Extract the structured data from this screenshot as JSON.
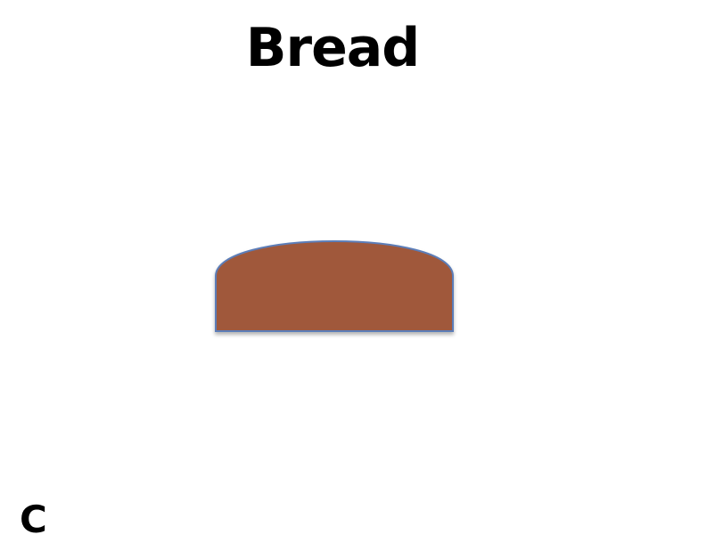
{
  "slide": {
    "title": "Bread",
    "corner_label": "C"
  },
  "shape": {
    "icon": "bread-loaf-icon",
    "fill_color": "#A0593A",
    "stroke_color": "#5B7DB8"
  }
}
